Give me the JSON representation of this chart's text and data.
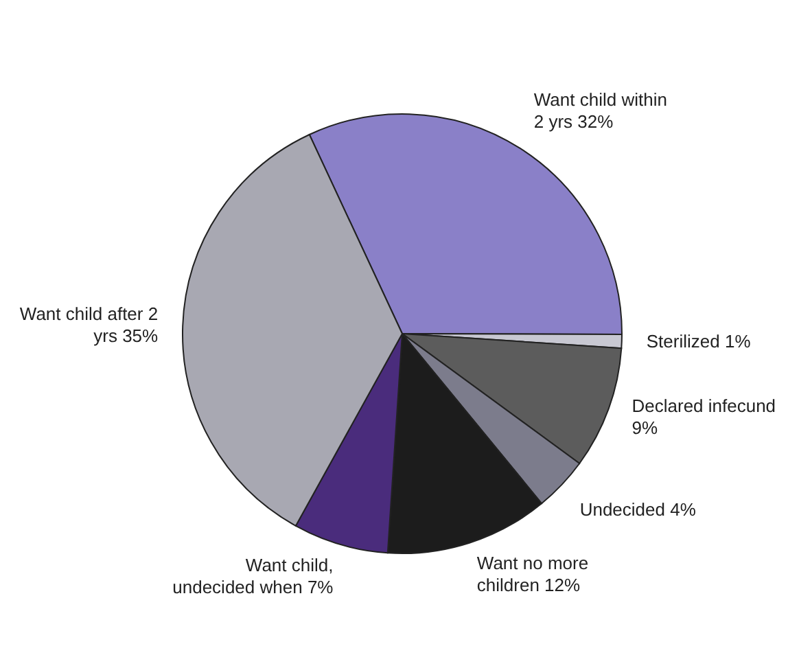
{
  "chart_data": {
    "type": "pie",
    "categories": [
      "Want child within 2 yrs",
      "Sterilized",
      "Declared infecund",
      "Undecided",
      "Want no more children",
      "Want child, undecided when",
      "Want child after 2 yrs"
    ],
    "values": [
      32,
      1,
      9,
      4,
      12,
      7,
      35
    ],
    "value_labels": [
      "32%",
      "1%",
      "9%",
      "4%",
      "12%",
      "7%",
      "35%"
    ],
    "colors": [
      "#8a80c8",
      "#c8c8d2",
      "#5c5c5c",
      "#7c7c8c",
      "#1c1c1c",
      "#4a2c7c",
      "#a8a8b2"
    ]
  }
}
